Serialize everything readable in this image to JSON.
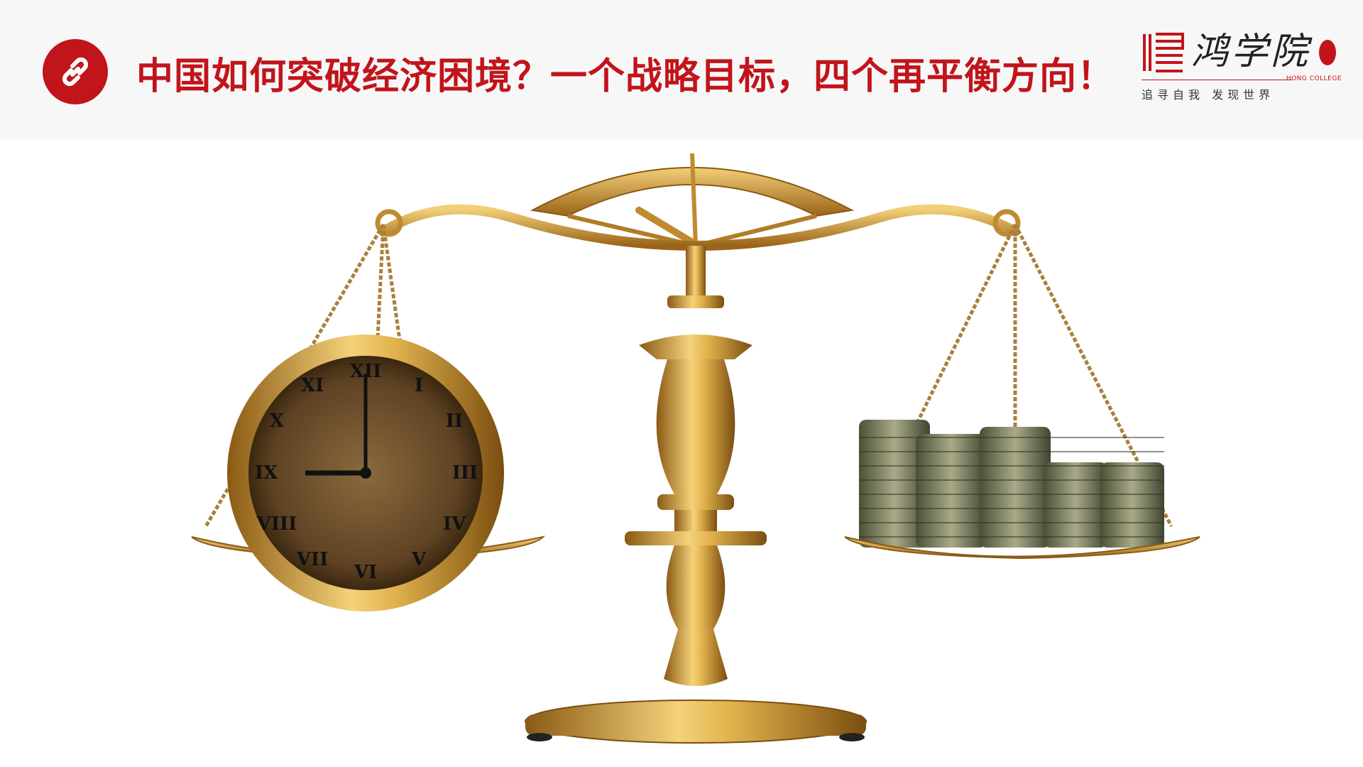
{
  "slide": {
    "title": "中国如何突破经济困境？一个战略目标，四个再平衡方向！",
    "accent_color": "#c2141b",
    "title_icon": "link-icon"
  },
  "logo": {
    "name": "鸿学院",
    "english": "HONG COLLEGE",
    "slogan": "追寻自我  发现世界"
  },
  "image": {
    "subject": "balance-scale-clock-vs-coins",
    "icons": [
      "balance-scale-icon",
      "alarm-clock-icon",
      "coin-stack-icon"
    ]
  }
}
